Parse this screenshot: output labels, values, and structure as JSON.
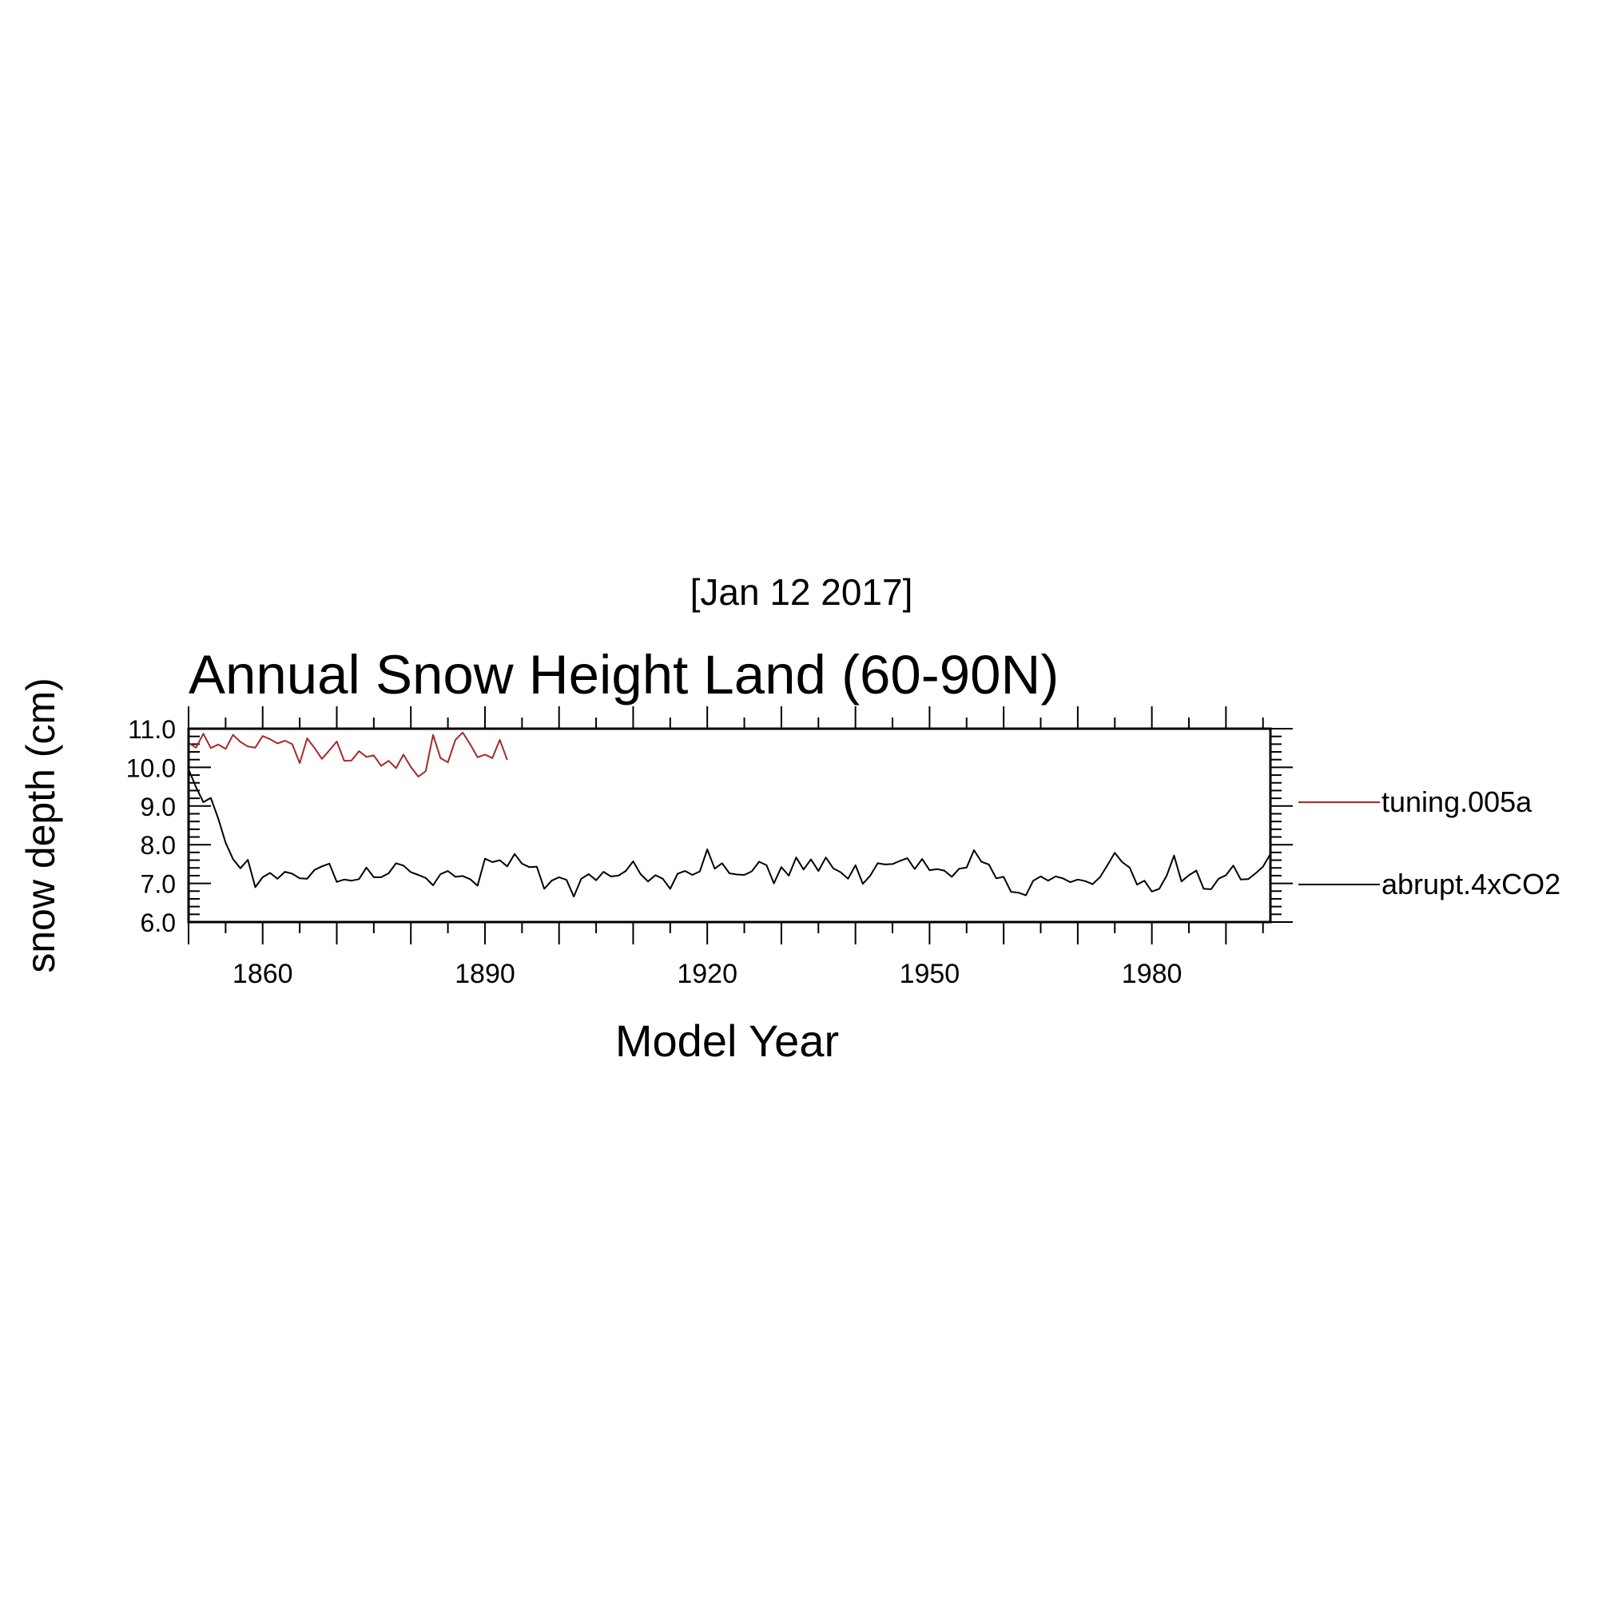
{
  "chart_data": {
    "type": "line",
    "date_label": "[Jan 12 2017]",
    "title": "Annual Snow Height Land (60-90N)",
    "xlabel": "Model Year",
    "ylabel": "snow depth (cm)",
    "xlim": [
      1850,
      1996
    ],
    "ylim": [
      6.0,
      11.0
    ],
    "x_major_ticks": [
      1860,
      1890,
      1920,
      1950,
      1980
    ],
    "x_tick_labels": [
      "1860",
      "1890",
      "1920",
      "1950",
      "1980"
    ],
    "y_major_ticks": [
      6.0,
      7.0,
      8.0,
      9.0,
      10.0,
      11.0
    ],
    "y_tick_labels": [
      "6.0",
      "7.0",
      "8.0",
      "9.0",
      "10.0",
      "11.0"
    ],
    "grid": false,
    "legend_position": "right",
    "series": [
      {
        "name": "tuning.005a",
        "color": "#a52a2a",
        "x_start": 1850,
        "values": [
          10.63,
          10.51,
          10.87,
          10.5,
          10.59,
          10.48,
          10.84,
          10.66,
          10.54,
          10.51,
          10.81,
          10.73,
          10.62,
          10.69,
          10.6,
          10.11,
          10.75,
          10.5,
          10.22,
          10.44,
          10.67,
          10.17,
          10.18,
          10.42,
          10.27,
          10.31,
          10.04,
          10.17,
          9.98,
          10.33,
          10.01,
          9.76,
          9.9,
          10.84,
          10.24,
          10.13,
          10.71,
          10.9,
          10.6,
          10.26,
          10.33,
          10.24,
          10.71,
          10.19
        ]
      },
      {
        "name": "abrupt.4xCO2",
        "color": "#000000",
        "x_start": 1850,
        "values": [
          9.95,
          9.49,
          9.1,
          9.21,
          8.68,
          8.05,
          7.63,
          7.39,
          7.61,
          6.9,
          7.16,
          7.27,
          7.12,
          7.3,
          7.25,
          7.13,
          7.12,
          7.35,
          7.44,
          7.51,
          7.04,
          7.1,
          7.07,
          7.11,
          7.41,
          7.16,
          7.16,
          7.26,
          7.52,
          7.46,
          7.29,
          7.22,
          7.14,
          6.95,
          7.24,
          7.32,
          7.17,
          7.19,
          7.11,
          6.94,
          7.64,
          7.55,
          7.6,
          7.44,
          7.76,
          7.51,
          7.42,
          7.43,
          6.86,
          7.07,
          7.16,
          7.09,
          6.66,
          7.12,
          7.24,
          7.08,
          7.3,
          7.18,
          7.2,
          7.32,
          7.57,
          7.24,
          7.05,
          7.21,
          7.12,
          6.86,
          7.25,
          7.32,
          7.22,
          7.31,
          7.88,
          7.38,
          7.52,
          7.26,
          7.23,
          7.22,
          7.31,
          7.56,
          7.47,
          7.0,
          7.42,
          7.2,
          7.67,
          7.36,
          7.62,
          7.32,
          7.67,
          7.39,
          7.29,
          7.12,
          7.47,
          6.99,
          7.2,
          7.52,
          7.49,
          7.5,
          7.58,
          7.65,
          7.37,
          7.63,
          7.34,
          7.37,
          7.33,
          7.17,
          7.38,
          7.41,
          7.86,
          7.56,
          7.49,
          7.13,
          7.17,
          6.78,
          6.76,
          6.69,
          7.07,
          7.18,
          7.07,
          7.18,
          7.13,
          7.03,
          7.1,
          7.06,
          6.98,
          7.16,
          7.47,
          7.79,
          7.55,
          7.41,
          6.97,
          7.07,
          6.79,
          6.86,
          7.2,
          7.72,
          7.05,
          7.21,
          7.33,
          6.86,
          6.85,
          7.12,
          7.21,
          7.46,
          7.1,
          7.11,
          7.26,
          7.43,
          7.76
        ]
      }
    ]
  }
}
